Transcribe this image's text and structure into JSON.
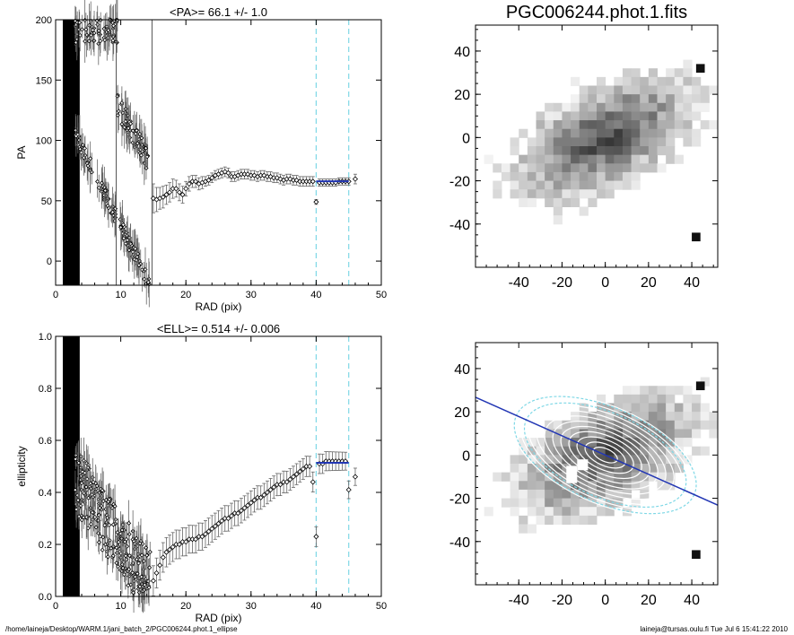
{
  "footer": {
    "left": "/home/laineja/Desktop/WARM.1/jani_batch_2/PGC006244.phot.1_ellipse",
    "right": "laineja@tursas.oulu.fi  Tue Jul  6 15:41:22 2010"
  },
  "colors": {
    "cyan": "#7fd8e6",
    "blue": "#2236b4",
    "dark_band": "#000000"
  },
  "chart_data": [
    {
      "type": "scatter",
      "title": "<PA>=  66.1 +/-   1.0",
      "xlabel": "RAD (pix)",
      "ylabel": "PA",
      "xlim": [
        0,
        50
      ],
      "ylim": [
        -20,
        200
      ],
      "xticks": [
        0,
        10,
        20,
        30,
        40,
        50
      ],
      "yticks": [
        0,
        50,
        100,
        150,
        200
      ],
      "grid": false,
      "vlines_black": [
        9.3,
        14.8
      ],
      "vlines_cyan": [
        40.0,
        45.0
      ],
      "fit_range": [
        40.0,
        45.0
      ],
      "fit_value": 66.1,
      "fit_error": 1.0,
      "series": [
        {
          "x": [
            15.0,
            15.5,
            16.0,
            16.5,
            17.0,
            17.5,
            18.0,
            18.5,
            19.0,
            19.5,
            20.0,
            20.5,
            21.0,
            21.5,
            22.0,
            22.5,
            23.0,
            23.5,
            24.0,
            24.5,
            25.0,
            25.5,
            26.0,
            26.5,
            27.0,
            27.5,
            28.0,
            28.5,
            29.0,
            29.5,
            30.0,
            30.5,
            31.0,
            31.5,
            32.0,
            32.5,
            33.0,
            33.5,
            34.0,
            34.5,
            35.0,
            35.5,
            36.0,
            36.5,
            37.0,
            37.5,
            38.0,
            38.5,
            39.0,
            39.5,
            40.0,
            40.5,
            41.0,
            41.5,
            42.0,
            42.5,
            43.0,
            43.5,
            44.0,
            44.5,
            45.0,
            46.0
          ],
          "y": [
            52,
            51,
            52,
            53,
            55,
            57,
            60,
            60,
            57,
            55,
            60,
            64,
            66,
            66,
            64,
            65,
            66,
            67,
            69,
            71,
            72,
            73,
            74,
            73,
            70,
            70,
            71,
            72,
            72,
            72,
            71,
            71,
            70,
            71,
            71,
            70,
            70,
            69,
            69,
            68,
            67,
            68,
            68,
            67,
            67,
            66,
            66,
            66,
            66,
            66,
            49,
            65,
            65,
            65,
            65,
            65,
            65,
            66,
            66,
            66,
            66,
            68
          ],
          "err": [
            12,
            10,
            9,
            9,
            8,
            8,
            8,
            7,
            7,
            7,
            6,
            6,
            5,
            5,
            5,
            5,
            4,
            4,
            4,
            4,
            4,
            4,
            4,
            4,
            4,
            4,
            4,
            4,
            4,
            4,
            4,
            4,
            4,
            4,
            4,
            4,
            4,
            4,
            4,
            4,
            4,
            4,
            4,
            4,
            4,
            4,
            4,
            4,
            4,
            4,
            2,
            3,
            3,
            3,
            3,
            3,
            3,
            3,
            3,
            3,
            3,
            4
          ]
        }
      ]
    },
    {
      "type": "scatter",
      "title": "<ELL>= 0.514 +/-  0.006",
      "xlabel": "RAD (pix)",
      "ylabel": "ellipticity",
      "xlim": [
        0,
        50
      ],
      "ylim": [
        0.0,
        1.0
      ],
      "xticks": [
        0,
        10,
        20,
        30,
        40,
        50
      ],
      "yticks": [
        0.0,
        0.2,
        0.4,
        0.6,
        0.8,
        1.0
      ],
      "grid": false,
      "vlines_cyan": [
        40.0,
        45.0
      ],
      "fit_range": [
        40.0,
        45.0
      ],
      "fit_value": 0.514,
      "fit_error": 0.006,
      "series": [
        {
          "x": [
            15.0,
            15.5,
            16.0,
            16.5,
            17.0,
            17.5,
            18.0,
            18.5,
            19.0,
            19.5,
            20.0,
            20.5,
            21.0,
            21.5,
            22.0,
            22.5,
            23.0,
            23.5,
            24.0,
            24.5,
            25.0,
            25.5,
            26.0,
            26.5,
            27.0,
            27.5,
            28.0,
            28.5,
            29.0,
            29.5,
            30.0,
            30.5,
            31.0,
            31.5,
            32.0,
            32.5,
            33.0,
            33.5,
            34.0,
            34.5,
            35.0,
            35.5,
            36.0,
            36.5,
            37.0,
            37.5,
            38.0,
            38.5,
            39.0,
            39.5,
            40.0,
            40.5,
            41.0,
            41.5,
            42.0,
            42.5,
            43.0,
            43.5,
            44.0,
            44.5,
            45.0,
            46.0
          ],
          "y": [
            0.06,
            0.09,
            0.12,
            0.15,
            0.17,
            0.18,
            0.19,
            0.2,
            0.2,
            0.21,
            0.21,
            0.22,
            0.22,
            0.22,
            0.23,
            0.23,
            0.24,
            0.25,
            0.26,
            0.27,
            0.28,
            0.29,
            0.3,
            0.3,
            0.31,
            0.32,
            0.32,
            0.33,
            0.34,
            0.35,
            0.36,
            0.37,
            0.38,
            0.38,
            0.39,
            0.4,
            0.41,
            0.42,
            0.43,
            0.43,
            0.44,
            0.44,
            0.45,
            0.46,
            0.47,
            0.48,
            0.49,
            0.5,
            0.5,
            0.44,
            0.23,
            0.51,
            0.51,
            0.52,
            0.52,
            0.52,
            0.52,
            0.52,
            0.52,
            0.52,
            0.41,
            0.46
          ]
        }
      ]
    },
    {
      "type": "heatmap",
      "title": "PGC006244.phot.1.fits",
      "xticks": [
        -40,
        -20,
        0,
        20,
        40
      ],
      "yticks": [
        -40,
        -20,
        0,
        20,
        40
      ],
      "xlim": [
        -60,
        52
      ],
      "ylim": [
        -60,
        52
      ],
      "colormap": "gray inverted"
    },
    {
      "type": "heatmap",
      "title": "",
      "xticks": [
        -40,
        -20,
        0,
        20,
        40
      ],
      "yticks": [
        -40,
        -20,
        0,
        20,
        40
      ],
      "xlim": [
        -60,
        52
      ],
      "ylim": [
        -60,
        52
      ],
      "colormap": "gray inverted",
      "overlay": {
        "major_axis_pa_deg": 66.1,
        "ellipticity": 0.514,
        "ellipse_semi_major": [
          6,
          10,
          14,
          18,
          22,
          26,
          30,
          34,
          38,
          42,
          46
        ],
        "cyan_ellipse_semi_major": [
          40,
          45
        ]
      }
    }
  ]
}
